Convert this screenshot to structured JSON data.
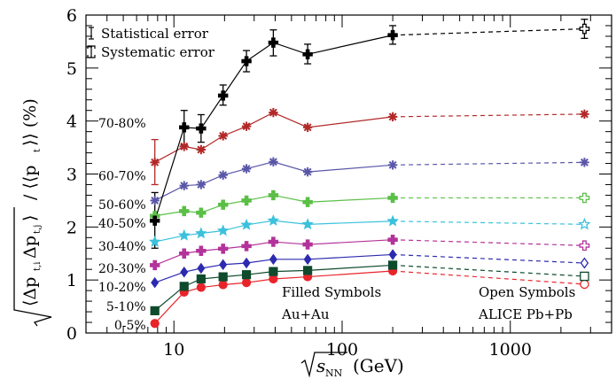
{
  "chart_data": {
    "type": "scatter",
    "xscale": "log",
    "xlim": [
      3,
      4000
    ],
    "ylim": [
      0,
      6
    ],
    "grid": false,
    "legend_position": "top-left",
    "xlabel": "√s_NN (GeV)",
    "ylabel": "√⟨Δp_t,i Δp_t,j⟩ / ⟨⟨p_t⟩⟩ (%)",
    "x_ticks": [
      10,
      100,
      1000
    ],
    "y_ticks": [
      0,
      1,
      2,
      3,
      4,
      5,
      6
    ],
    "legend": [
      {
        "label": "Statistical error",
        "marker": "statistical-error-bar"
      },
      {
        "label": "Systematic error",
        "marker": "systematic-error-bar"
      }
    ],
    "annotations": [
      {
        "text": "Filled Symbols",
        "x": 180,
        "y": 0.9
      },
      {
        "text": "Au+Au",
        "x": 180,
        "y": 0.55
      },
      {
        "text": "Open Symbols",
        "x": 2000,
        "y": 0.9
      },
      {
        "text": "ALICE Pb+Pb",
        "x": 2000,
        "y": 0.55
      }
    ],
    "series": [
      {
        "name": "0-5%",
        "color": "#e8242a",
        "marker": "circle",
        "x": [
          7.7,
          11.5,
          14.5,
          19.6,
          27,
          39,
          62.4,
          200
        ],
        "y": [
          0.18,
          0.77,
          0.86,
          0.91,
          0.95,
          1.02,
          1.06,
          1.17
        ],
        "alice_x": 2760,
        "alice_y": 0.92
      },
      {
        "name": "5-10%",
        "color": "#0e4a2c",
        "marker": "square",
        "x": [
          7.7,
          11.5,
          14.5,
          19.6,
          27,
          39,
          62.4,
          200
        ],
        "y": [
          0.42,
          0.88,
          1.02,
          1.06,
          1.1,
          1.16,
          1.18,
          1.28
        ],
        "alice_x": 2760,
        "alice_y": 1.07
      },
      {
        "name": "10-20%",
        "color": "#2c2bb0",
        "marker": "diamond",
        "x": [
          7.7,
          11.5,
          14.5,
          19.6,
          27,
          39,
          62.4,
          200
        ],
        "y": [
          0.95,
          1.15,
          1.22,
          1.29,
          1.32,
          1.39,
          1.39,
          1.48
        ],
        "alice_x": 2760,
        "alice_y": 1.32
      },
      {
        "name": "20-30%",
        "color": "#b3339a",
        "marker": "cross",
        "x": [
          7.7,
          11.5,
          14.5,
          19.6,
          27,
          39,
          62.4,
          200
        ],
        "y": [
          1.28,
          1.5,
          1.55,
          1.59,
          1.64,
          1.72,
          1.67,
          1.76
        ],
        "alice_x": 2760,
        "alice_y": 1.65
      },
      {
        "name": "30-40%",
        "color": "#3cc1dc",
        "marker": "star",
        "x": [
          7.7,
          11.5,
          14.5,
          19.6,
          27,
          39,
          62.4,
          200
        ],
        "y": [
          1.72,
          1.84,
          1.88,
          1.93,
          2.04,
          2.12,
          2.05,
          2.11
        ],
        "alice_x": 2760,
        "alice_y": 2.05
      },
      {
        "name": "40-50%",
        "color": "#5bbf47",
        "marker": "cross",
        "x": [
          7.7,
          11.5,
          14.5,
          19.6,
          27,
          39,
          62.4,
          200
        ],
        "y": [
          2.21,
          2.3,
          2.27,
          2.42,
          2.5,
          2.6,
          2.47,
          2.55
        ],
        "alice_x": 2760,
        "alice_y": 2.55
      },
      {
        "name": "50-60%",
        "color": "#5a57a8",
        "marker": "asterisk",
        "x": [
          7.7,
          11.5,
          14.5,
          19.6,
          27,
          39,
          62.4,
          200
        ],
        "y": [
          2.5,
          2.78,
          2.8,
          2.98,
          3.1,
          3.23,
          3.04,
          3.17
        ],
        "alice_x": 2760,
        "alice_y": 3.22
      },
      {
        "name": "60-70%",
        "color": "#b22828",
        "marker": "asterisk",
        "x": [
          7.7,
          11.5,
          14.5,
          19.6,
          27,
          39,
          62.4,
          200
        ],
        "y": [
          3.22,
          3.52,
          3.46,
          3.72,
          3.9,
          4.16,
          3.88,
          4.08
        ],
        "alice_x": 2760,
        "alice_y": 4.13
      },
      {
        "name": "70-80%",
        "color": "#000000",
        "marker": "cross",
        "x": [
          7.7,
          11.5,
          14.5,
          19.6,
          27,
          39,
          62.4,
          200
        ],
        "y": [
          2.12,
          3.88,
          3.86,
          4.48,
          5.13,
          5.48,
          5.26,
          5.62
        ],
        "alice_x": 2760,
        "alice_y": 5.74
      }
    ],
    "error_bars": [
      {
        "series": "60-70%",
        "x": 7.7,
        "low": 2.8,
        "high": 3.65
      },
      {
        "series": "70-80%",
        "x": 7.7,
        "low": 1.6,
        "high": 2.65
      },
      {
        "series": "70-80%",
        "x": 11.5,
        "low": 3.55,
        "high": 4.2
      },
      {
        "series": "70-80%",
        "x": 14.5,
        "low": 3.6,
        "high": 4.12
      },
      {
        "series": "70-80%",
        "x": 19.6,
        "low": 4.3,
        "high": 4.68
      },
      {
        "series": "70-80%",
        "x": 27,
        "low": 4.93,
        "high": 5.33
      },
      {
        "series": "70-80%",
        "x": 39,
        "low": 5.23,
        "high": 5.72
      },
      {
        "series": "70-80%",
        "x": 62.4,
        "low": 5.08,
        "high": 5.45
      },
      {
        "series": "70-80%",
        "x": 200,
        "low": 5.45,
        "high": 5.8
      },
      {
        "series": "70-80%",
        "x": 2760,
        "low": 5.56,
        "high": 5.92
      }
    ]
  }
}
